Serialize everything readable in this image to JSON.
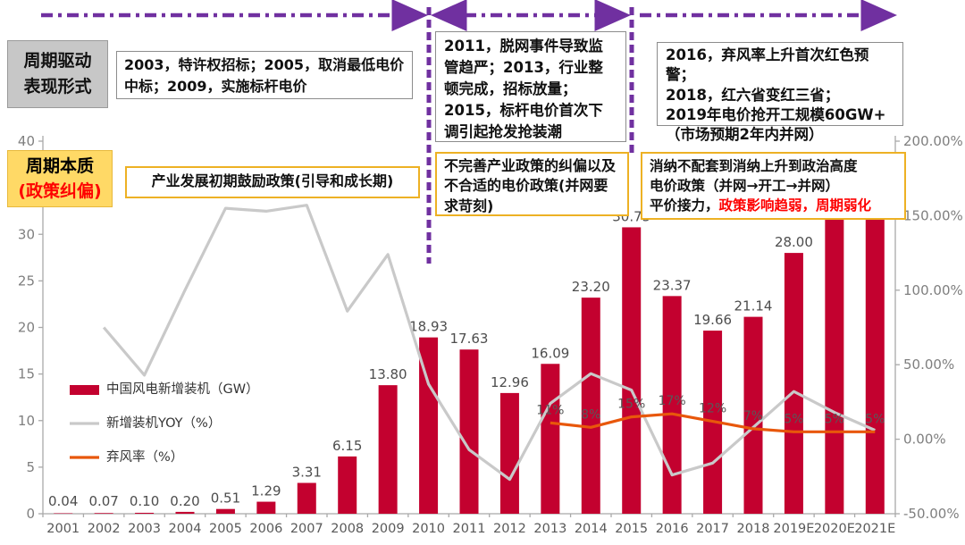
{
  "colors": {
    "bar": "#c3012f",
    "yoy_line": "#c9c9c9",
    "curtail_line": "#e8570b",
    "purple": "#7030a0",
    "axis_text": "#7f7f7f",
    "category_text": "#595959",
    "label_text": "#4d4d4d",
    "yellow_fill": "#ffd966",
    "yellow_border": "#edb124",
    "red_text": "#fe0000"
  },
  "header": {
    "driver_line1": "周期驱动",
    "driver_line2": "表现形式",
    "box1": "2003，特许权招标；2005，取消最低电价中标；2009，实施标杆电价",
    "box2": "2011，脱网事件导致监管趋严；2013，行业整顿完成，招标放量；2015，标杆电价首次下调引起抢发抢装潮",
    "box3_line1": "2016，弃风率上升首次红色预警；",
    "box3_line2": "2018，红六省变红三省；",
    "box3_line3": "2019年电价抢开工规模60GW+",
    "box3_line4": "（市场预期2年内并网）"
  },
  "essence": {
    "title": "周期本质",
    "subtitle": "(政策纠偏)",
    "box1": "产业发展初期鼓励政策(引导和成长期)",
    "box2": "不完善产业政策的纠偏以及不合适的电价政策(并网要求苛刻)",
    "box3_line1": "消纳不配套到消纳上升到政治高度",
    "box3_line2": "电价政策（并网→开工→并网）",
    "box3_line3_black": "平价接力，",
    "box3_line3_red": "政策影响趋弱，周期弱化"
  },
  "chart_data": {
    "type": "bar",
    "categories": [
      "2001",
      "2002",
      "2003",
      "2004",
      "2005",
      "2006",
      "2007",
      "2008",
      "2009",
      "2010",
      "2011",
      "2012",
      "2013",
      "2014",
      "2015",
      "2016",
      "2017",
      "2018",
      "2019E",
      "2020E",
      "2021E"
    ],
    "series": [
      {
        "name": "中国风电新增装机（GW）",
        "type": "bar",
        "axis": "left",
        "values": [
          0.04,
          0.07,
          0.1,
          0.2,
          0.51,
          1.29,
          3.31,
          6.15,
          13.8,
          18.93,
          17.63,
          12.96,
          16.09,
          23.2,
          30.75,
          23.37,
          19.66,
          21.14,
          28.0,
          33,
          35
        ],
        "labels": [
          "0.04",
          "0.07",
          "0.10",
          "0.20",
          "0.51",
          "1.29",
          "3.31",
          "6.15",
          "13.80",
          "18.93",
          "17.63",
          "12.96",
          "16.09",
          "23.20",
          "30.75",
          "23.37",
          "19.66",
          "21.14",
          "28.00",
          "",
          ""
        ]
      },
      {
        "name": "新增装机YOY（%）",
        "type": "line",
        "axis": "right",
        "values": [
          null,
          75,
          43,
          100,
          155,
          153,
          157,
          86,
          124,
          37,
          -7,
          -27,
          24,
          44,
          33,
          -24,
          -16,
          8,
          32,
          18,
          6
        ],
        "labels": [
          "",
          "",
          "",
          "",
          "",
          "",
          "",
          "",
          "",
          "",
          "",
          "",
          "",
          "",
          "",
          "",
          "",
          "",
          "",
          "",
          ""
        ]
      },
      {
        "name": "弃风率（%）",
        "type": "line",
        "axis": "right",
        "values": [
          null,
          null,
          null,
          null,
          null,
          null,
          null,
          null,
          null,
          null,
          null,
          null,
          11,
          8,
          15,
          17,
          12,
          7,
          5,
          5,
          5
        ],
        "labels": [
          "",
          "",
          "",
          "",
          "",
          "",
          "",
          "",
          "",
          "",
          "",
          "",
          "11%",
          "8%",
          "15%",
          "17%",
          "12%",
          "7%",
          "5%",
          "5%",
          "5%"
        ]
      }
    ],
    "left_axis": {
      "min": 0,
      "max": 40,
      "step": 5,
      "ticks": [
        "0",
        "5",
        "10",
        "15",
        "20",
        "25",
        "30",
        "35",
        "40"
      ]
    },
    "right_axis": {
      "min": -50,
      "max": 200,
      "step": 50,
      "ticks": [
        "-50.00%",
        "0.00%",
        "50.00%",
        "100.00%",
        "150.00%",
        "200.00%"
      ]
    },
    "grid": false,
    "legend_position": "inside-left"
  }
}
